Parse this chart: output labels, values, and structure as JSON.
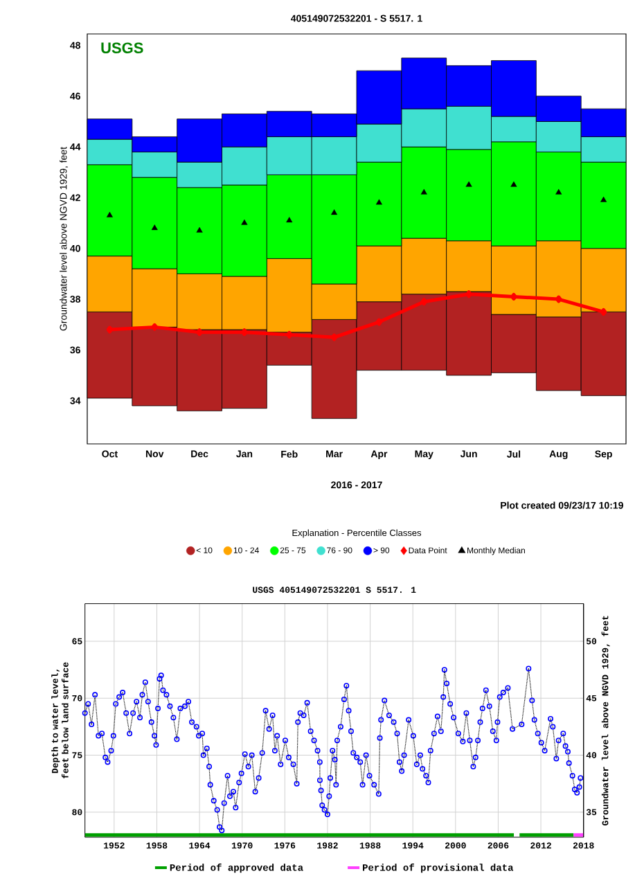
{
  "chart_data": [
    {
      "type": "bar",
      "title": "405149072532201 - S 5517. 1",
      "xlabel": "2016 - 2017",
      "ylabel": "Groundwater level above NGVD 1929, feet",
      "legend_title": "Explanation - Percentile Classes",
      "annotations": [
        "USGS",
        "Plot created 09/23/17 10:19"
      ],
      "categories": [
        "Oct",
        "Nov",
        "Dec",
        "Jan",
        "Feb",
        "Mar",
        "Apr",
        "May",
        "Jun",
        "Jul",
        "Aug",
        "Sep"
      ],
      "series": [
        {
          "name": "< 10",
          "color": "#b22222",
          "base": [
            34.1,
            33.8,
            33.6,
            33.7,
            35.4,
            33.3,
            35.2,
            35.2,
            35.0,
            35.1,
            34.4,
            34.2
          ],
          "values": [
            3.4,
            3.1,
            3.2,
            3.1,
            1.3,
            3.9,
            2.7,
            3.0,
            3.3,
            2.3,
            2.9,
            3.3
          ]
        },
        {
          "name": "10 - 24",
          "color": "#ffa500",
          "base": [
            37.5,
            36.9,
            36.8,
            36.8,
            36.7,
            37.2,
            37.9,
            38.2,
            38.3,
            37.4,
            37.3,
            37.5
          ],
          "values": [
            2.2,
            2.3,
            2.2,
            2.1,
            2.9,
            1.4,
            2.2,
            2.2,
            2.0,
            2.7,
            3.0,
            2.5
          ]
        },
        {
          "name": "25 - 75",
          "color": "#00ff00",
          "base": [
            39.7,
            39.2,
            39.0,
            38.9,
            39.6,
            38.6,
            40.1,
            40.4,
            40.3,
            40.1,
            40.3,
            40.0
          ],
          "values": [
            3.6,
            3.6,
            3.4,
            3.6,
            3.3,
            4.3,
            3.3,
            3.6,
            3.6,
            4.1,
            3.5,
            3.4
          ]
        },
        {
          "name": "76 - 90",
          "color": "#40e0d0",
          "base": [
            43.3,
            42.8,
            42.4,
            42.5,
            42.9,
            42.9,
            43.4,
            44.0,
            43.9,
            44.2,
            43.8,
            43.4
          ],
          "values": [
            1.0,
            1.0,
            1.0,
            1.5,
            1.5,
            1.5,
            1.5,
            1.5,
            1.7,
            1.0,
            1.2,
            1.0
          ]
        },
        {
          "name": "> 90",
          "color": "#0000ff",
          "base": [
            44.3,
            43.8,
            43.4,
            44.0,
            44.4,
            44.4,
            44.9,
            45.5,
            45.6,
            45.2,
            45.0,
            44.4
          ],
          "values": [
            0.8,
            0.6,
            1.7,
            1.3,
            1.0,
            0.9,
            2.1,
            2.0,
            1.6,
            2.2,
            1.0,
            1.1
          ]
        },
        {
          "name": "Data Point",
          "type": "line",
          "marker": "diamond",
          "color": "#ff0000",
          "values": [
            36.8,
            36.9,
            36.7,
            36.7,
            36.6,
            36.5,
            37.1,
            37.9,
            38.2,
            38.1,
            38.0,
            37.5
          ]
        },
        {
          "name": "Monthly Median",
          "type": "scatter",
          "marker": "triangle",
          "color": "#000000",
          "values": [
            41.3,
            40.8,
            40.7,
            41.0,
            41.1,
            41.4,
            41.8,
            42.2,
            42.5,
            42.5,
            42.2,
            41.9
          ]
        }
      ],
      "ylim": [
        32.3,
        48.45
      ],
      "yticks": [
        34,
        36,
        38,
        40,
        42,
        44,
        46,
        48
      ],
      "legend": "bottom"
    },
    {
      "type": "line",
      "title": "USGS 405149072532201 S   5517. 1",
      "ylabel": "Depth to water level, feet below land surface",
      "y2label": "Groundwater level above NGVD 1929, feet",
      "marker": "circle",
      "line_style": "dotted",
      "grid": true,
      "legend": "bottom",
      "xlim": [
        1947.9,
        2018.0
      ],
      "xticks": [
        1952,
        1958,
        1964,
        1970,
        1976,
        1982,
        1988,
        1994,
        2000,
        2006,
        2012,
        2018
      ],
      "ylim": [
        82.2,
        61.7
      ],
      "yticks": [
        65,
        70,
        75,
        80
      ],
      "y2lim": [
        32.8,
        53.3
      ],
      "y2ticks": [
        35,
        40,
        45,
        50
      ],
      "series": [
        {
          "name": "Period of approved data",
          "type": "line",
          "marker": "none",
          "line_style": "solid",
          "color": "#00a000",
          "x": [
            1947.9,
            2008.2,
            2008.6,
            2009.0,
            2016.6
          ],
          "values": [
            82.0,
            82.0,
            null,
            82.0,
            82.0
          ]
        },
        {
          "name": "Period of provisional data",
          "type": "line",
          "marker": "none",
          "line_style": "solid",
          "color": "#ff40ff",
          "x": [
            2016.6,
            2018.0
          ],
          "values": [
            82.0,
            82.0
          ]
        },
        {
          "color": "#0000ff",
          "x": [
            1947.9,
            1948.34,
            1948.82,
            1949.31,
            1949.8,
            1950.28,
            1950.77,
            1951.09,
            1951.58,
            1951.9,
            1952.23,
            1952.71,
            1953.2,
            1953.69,
            1954.17,
            1954.66,
            1955.15,
            1955.63,
            1955.96,
            1956.38,
            1956.77,
            1957.25,
            1957.67,
            1957.9,
            1958.16,
            1958.39,
            1958.61,
            1958.87,
            1959.36,
            1959.85,
            1960.33,
            1960.82,
            1961.31,
            1961.95,
            1962.44,
            1962.93,
            1963.58,
            1963.9,
            1964.39,
            1964.55,
            1965.04,
            1965.36,
            1965.52,
            1966.01,
            1966.49,
            1966.82,
            1967.14,
            1967.47,
            1967.95,
            1968.28,
            1968.76,
            1969.09,
            1969.57,
            1969.9,
            1970.39,
            1970.87,
            1971.36,
            1971.84,
            1972.33,
            1972.82,
            1973.3,
            1973.79,
            1974.28,
            1974.6,
            1974.92,
            1975.41,
            1976.06,
            1976.55,
            1977.19,
            1977.68,
            1977.84,
            1978.17,
            1978.65,
            1979.14,
            1979.63,
            1980.11,
            1980.6,
            1980.92,
            1980.93,
            1981.09,
            1981.25,
            1981.58,
            1982.0,
            1982.23,
            1982.39,
            1982.71,
            1983.04,
            1983.2,
            1983.36,
            1983.85,
            1984.33,
            1984.66,
            1984.98,
            1985.31,
            1985.63,
            1986.12,
            1986.6,
            1986.93,
            1987.42,
            1987.9,
            1988.55,
            1989.2,
            1989.36,
            1989.52,
            1990.01,
            1990.66,
            1991.31,
            1991.79,
            1992.12,
            1992.44,
            1992.77,
            1993.41,
            1994.06,
            1994.55,
            1995.04,
            1995.36,
            1995.85,
            1996.17,
            1996.49,
            1996.98,
            1997.47,
            1997.95,
            1998.28,
            1998.44,
            1998.76,
            1999.25,
            1999.74,
            2000.39,
            2001.03,
            2001.52,
            2002.01,
            2002.49,
            2002.82,
            2003.14,
            2003.47,
            2003.79,
            2004.28,
            2004.76,
            2005.25,
            2005.74,
            2005.9,
            2006.22,
            2006.71,
            2007.36,
            2008.01,
            2009.3,
            2010.27,
            2010.76,
            2011.09,
            2011.57,
            2012.06,
            2012.54,
            2013.36,
            2013.68,
            2014.17,
            2014.49,
            2015.14,
            2015.46,
            2015.79,
            2015.95,
            2016.44,
            2016.76,
            2017.08,
            2017.41,
            2017.57
          ],
          "values": [
            71.3,
            70.5,
            72.3,
            69.7,
            73.3,
            73.1,
            75.2,
            75.6,
            74.6,
            73.3,
            70.5,
            69.9,
            69.5,
            71.3,
            73.1,
            71.3,
            70.3,
            71.7,
            69.7,
            68.6,
            70.3,
            72.1,
            73.3,
            74.1,
            70.9,
            68.3,
            68.0,
            69.3,
            69.7,
            70.7,
            71.7,
            73.6,
            70.9,
            70.7,
            70.3,
            72.1,
            72.5,
            73.3,
            73.1,
            75.0,
            74.4,
            76.0,
            77.6,
            79.0,
            79.8,
            81.3,
            81.6,
            79.2,
            76.8,
            78.6,
            78.2,
            79.6,
            77.4,
            76.6,
            74.9,
            76.0,
            75.0,
            78.2,
            77.0,
            74.8,
            71.1,
            72.7,
            71.5,
            74.6,
            73.3,
            75.8,
            73.7,
            75.2,
            75.8,
            77.5,
            72.1,
            71.3,
            71.5,
            70.4,
            72.9,
            73.7,
            74.6,
            75.6,
            77.2,
            78.1,
            79.4,
            79.8,
            80.2,
            78.6,
            77.0,
            74.6,
            75.4,
            77.6,
            73.7,
            72.5,
            70.1,
            68.9,
            71.1,
            72.9,
            74.8,
            75.2,
            75.6,
            77.6,
            75.0,
            76.8,
            77.6,
            78.4,
            73.5,
            71.9,
            70.2,
            71.5,
            72.1,
            73.1,
            75.6,
            76.4,
            75.0,
            71.9,
            73.3,
            75.8,
            75.0,
            76.2,
            76.8,
            77.4,
            74.6,
            73.1,
            71.6,
            72.9,
            69.9,
            67.5,
            68.7,
            70.5,
            71.7,
            73.1,
            73.8,
            71.3,
            73.7,
            76.0,
            75.2,
            73.7,
            72.1,
            70.9,
            69.3,
            70.7,
            72.9,
            73.7,
            72.1,
            69.9,
            69.5,
            69.1,
            72.7,
            72.3,
            67.4,
            70.2,
            71.9,
            73.1,
            73.9,
            74.6,
            71.8,
            72.5,
            75.3,
            73.7,
            73.1,
            74.2,
            74.7,
            75.7,
            76.8,
            78.0,
            78.3,
            77.8,
            77.0
          ]
        }
      ]
    }
  ]
}
